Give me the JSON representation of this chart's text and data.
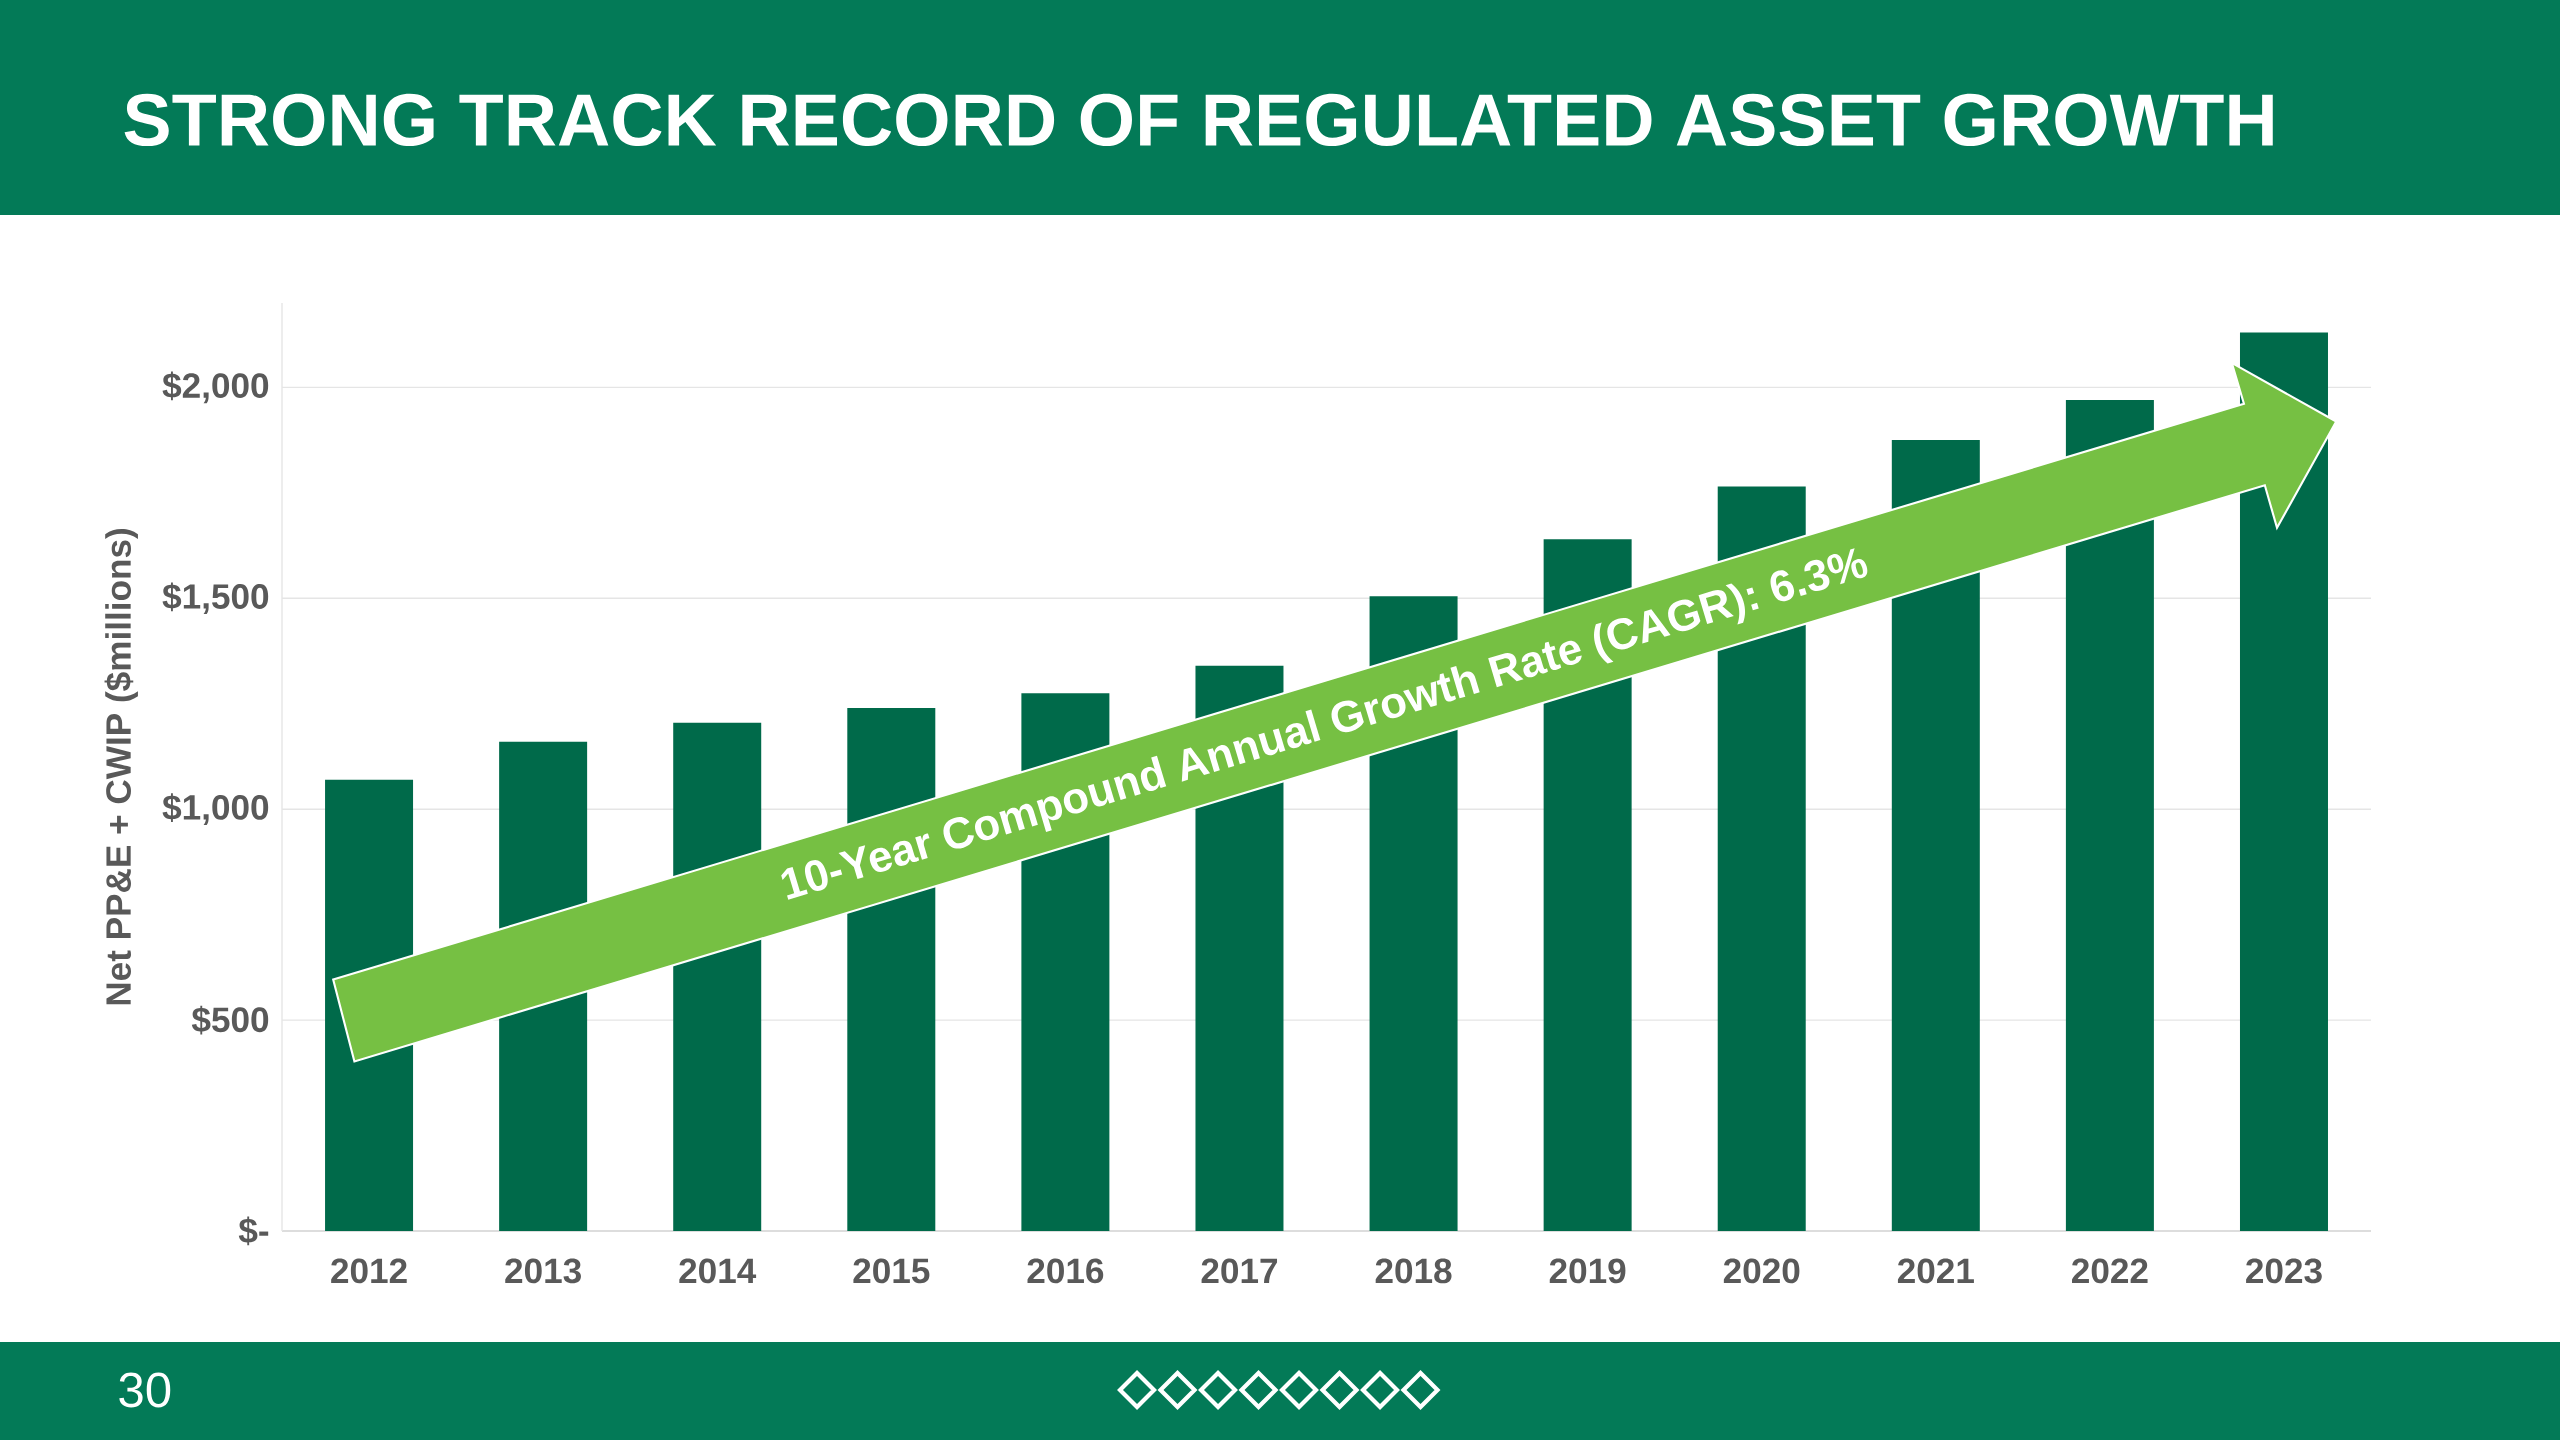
{
  "chart_data": {
    "type": "bar",
    "title": "STRONG TRACK RECORD OF REGULATED ASSET GROWTH",
    "ylabel": "Net PP&E + CWIP ($millions)",
    "categories": [
      "2012",
      "2013",
      "2014",
      "2015",
      "2016",
      "2017",
      "2018",
      "2019",
      "2020",
      "2021",
      "2022",
      "2023"
    ],
    "values": [
      1070,
      1160,
      1205,
      1240,
      1275,
      1340,
      1505,
      1640,
      1765,
      1875,
      1970,
      2130
    ],
    "color": "#006a4a",
    "yticks": [
      {
        "value": 0,
        "label": "$-"
      },
      {
        "value": 500,
        "label": "$500"
      },
      {
        "value": 1000,
        "label": "$1,000"
      },
      {
        "value": 1500,
        "label": "$1,500"
      },
      {
        "value": 2000,
        "label": "$2,000"
      }
    ],
    "ylim": [
      0,
      2200
    ],
    "grid": "y",
    "annotations": [
      "10-Year Compound Annual Growth Rate (CAGR): 6.3%",
      "30"
    ]
  }
}
